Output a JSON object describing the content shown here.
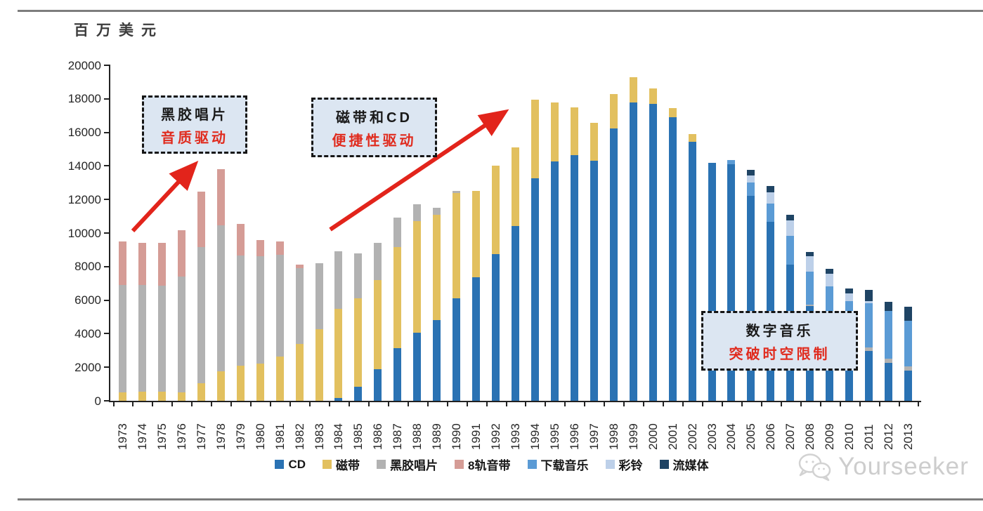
{
  "page": {
    "unit_label": "百万美元",
    "watermark_text": "Yourseeker"
  },
  "annotations": [
    {
      "line1": "黑胶唱片",
      "line2": "音质驱动"
    },
    {
      "line1": "磁带和CD",
      "line2": "便捷性驱动"
    },
    {
      "line1": "数字音乐",
      "line2": "突破时空限制"
    }
  ],
  "chart_data": {
    "type": "bar",
    "stacked": true,
    "title": "",
    "xlabel": "",
    "ylabel": "百万美元",
    "ylim": [
      0,
      20000
    ],
    "ytick_interval": 2000,
    "grid": false,
    "legend_position": "bottom",
    "categories": [
      1973,
      1974,
      1975,
      1976,
      1977,
      1978,
      1979,
      1980,
      1981,
      1982,
      1983,
      1984,
      1985,
      1986,
      1987,
      1988,
      1989,
      1990,
      1991,
      1992,
      1993,
      1994,
      1995,
      1996,
      1997,
      1998,
      1999,
      2000,
      2001,
      2002,
      2003,
      2004,
      2005,
      2006,
      2007,
      2008,
      2009,
      2010,
      2011,
      2012,
      2013
    ],
    "series": [
      {
        "key": "cd",
        "name": "CD",
        "color": "#2a72b3",
        "values": [
          0,
          0,
          0,
          0,
          0,
          0,
          0,
          0,
          0,
          0,
          0,
          150,
          850,
          1900,
          3150,
          4050,
          4800,
          6100,
          7350,
          8750,
          10400,
          13250,
          14250,
          14650,
          14300,
          16250,
          17800,
          17700,
          16900,
          15450,
          14200,
          14100,
          12200,
          10650,
          8100,
          5650,
          4050,
          3250,
          2950,
          2250,
          1800
        ]
      },
      {
        "key": "cassette",
        "name": "磁带",
        "color": "#e2c05f",
        "values": [
          500,
          550,
          550,
          500,
          1050,
          1750,
          2100,
          2200,
          2650,
          3400,
          4250,
          5350,
          5250,
          5300,
          6000,
          6650,
          6300,
          6300,
          5150,
          5250,
          4700,
          4700,
          3550,
          2850,
          2250,
          2050,
          1500,
          900,
          550,
          450,
          0,
          0,
          0,
          0,
          0,
          0,
          0,
          0,
          0,
          0,
          0
        ]
      },
      {
        "key": "vinyl",
        "name": "黑胶唱片",
        "color": "#b2b2b2",
        "values": [
          6400,
          6350,
          6300,
          6900,
          8100,
          8700,
          6550,
          6400,
          6050,
          4500,
          3950,
          3400,
          2700,
          2200,
          1750,
          1000,
          400,
          100,
          0,
          0,
          0,
          0,
          0,
          0,
          0,
          0,
          0,
          0,
          0,
          0,
          0,
          0,
          0,
          0,
          0,
          80,
          80,
          100,
          250,
          250,
          250
        ]
      },
      {
        "key": "8track",
        "name": "8轨音带",
        "color": "#d59c96",
        "values": [
          2600,
          2500,
          2550,
          2750,
          3300,
          3350,
          1900,
          1000,
          800,
          200,
          0,
          0,
          0,
          0,
          0,
          0,
          0,
          0,
          0,
          0,
          0,
          0,
          0,
          0,
          0,
          0,
          0,
          0,
          0,
          0,
          0,
          0,
          0,
          0,
          0,
          0,
          0,
          0,
          0,
          0,
          0
        ]
      },
      {
        "key": "download",
        "name": "下载音乐",
        "color": "#5b9bd5",
        "values": [
          0,
          0,
          0,
          0,
          0,
          0,
          0,
          0,
          0,
          0,
          0,
          0,
          0,
          0,
          0,
          0,
          0,
          0,
          0,
          0,
          0,
          0,
          0,
          0,
          0,
          0,
          0,
          0,
          0,
          0,
          0,
          250,
          800,
          1120,
          1750,
          1950,
          2700,
          2600,
          2600,
          2850,
          2700
        ]
      },
      {
        "key": "ringtone",
        "name": "彩铃",
        "color": "#bdd0e9",
        "values": [
          0,
          0,
          0,
          0,
          0,
          0,
          0,
          0,
          0,
          0,
          0,
          0,
          0,
          0,
          0,
          0,
          0,
          0,
          0,
          0,
          0,
          0,
          0,
          0,
          0,
          0,
          0,
          0,
          0,
          0,
          0,
          0,
          450,
          650,
          900,
          950,
          750,
          450,
          150,
          0,
          0
        ]
      },
      {
        "key": "streaming",
        "name": "流媒体",
        "color": "#1f4464",
        "values": [
          0,
          0,
          0,
          0,
          0,
          0,
          0,
          0,
          0,
          0,
          0,
          0,
          0,
          0,
          0,
          0,
          0,
          0,
          0,
          0,
          0,
          0,
          0,
          0,
          0,
          0,
          0,
          0,
          0,
          0,
          0,
          0,
          300,
          400,
          350,
          250,
          270,
          300,
          650,
          550,
          850
        ]
      }
    ]
  }
}
